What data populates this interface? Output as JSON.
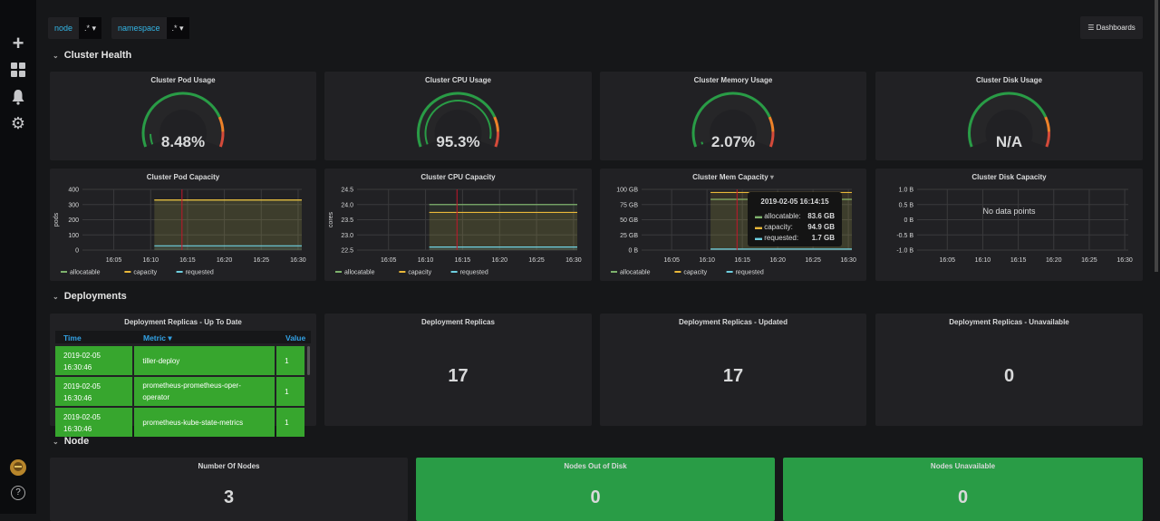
{
  "sidebar": {
    "items": [
      {
        "icon": "plus-icon",
        "glyph": "+"
      },
      {
        "icon": "dashboards-icon",
        "glyph": "▦"
      },
      {
        "icon": "bell-icon",
        "glyph": "🔔"
      },
      {
        "icon": "gear-icon",
        "glyph": "⚙"
      }
    ],
    "help_glyph": "?"
  },
  "variables": [
    {
      "label": "node",
      "value": ".*"
    },
    {
      "label": "namespace",
      "value": ".*"
    }
  ],
  "dashboards_button": "Dashboards",
  "rows": {
    "cluster_health": "Cluster Health",
    "deployments": "Deployments",
    "node": "Node"
  },
  "gauges": [
    {
      "title": "Cluster Pod Usage",
      "value": "8.48%",
      "fraction": 0.0848
    },
    {
      "title": "Cluster CPU Usage",
      "value": "95.3%",
      "fraction": 0.953
    },
    {
      "title": "Cluster Memory Usage",
      "value": "2.07%",
      "fraction": 0.0207
    },
    {
      "title": "Cluster Disk Usage",
      "value": "N/A",
      "fraction": null
    }
  ],
  "colors": {
    "ok": "#299c46",
    "warn": "#ed8128",
    "crit": "#d44a3a",
    "allocatable": "#7eb26d",
    "capacity": "#eab839",
    "requested": "#6ed0e0",
    "annotation": "#c4162a"
  },
  "chart_data": [
    {
      "type": "line",
      "title": "Cluster Pod Capacity",
      "ylabel": "pods",
      "ylim": [
        0,
        400
      ],
      "yticks": [
        "400",
        "300",
        "200",
        "100",
        "0"
      ],
      "ytick_values": [
        400,
        300,
        200,
        100,
        0
      ],
      "xticks": [
        "16:05",
        "16:10",
        "16:15",
        "16:20",
        "16:25",
        "16:30"
      ],
      "xrange": [
        "16:00:45",
        "16:30:30"
      ],
      "annotation_time": "16:14:15",
      "grid": true,
      "legend": "bottom",
      "series": [
        {
          "name": "allocatable",
          "start": "16:10:30",
          "end": "16:30:30",
          "value": 330
        },
        {
          "name": "capacity",
          "start": "16:10:30",
          "end": "16:30:30",
          "value": 330
        },
        {
          "name": "requested",
          "start": "16:10:30",
          "end": "16:30:30",
          "value": 28
        }
      ]
    },
    {
      "type": "line",
      "title": "Cluster CPU Capacity",
      "ylabel": "cores",
      "ylim": [
        22.5,
        24.5
      ],
      "yticks": [
        "24.5",
        "24.0",
        "23.5",
        "23.0",
        "22.5"
      ],
      "ytick_values": [
        24.5,
        24.0,
        23.5,
        23.0,
        22.5
      ],
      "xticks": [
        "16:05",
        "16:10",
        "16:15",
        "16:20",
        "16:25",
        "16:30"
      ],
      "xrange": [
        "16:00:45",
        "16:30:30"
      ],
      "annotation_time": "16:14:15",
      "grid": true,
      "legend": "bottom",
      "series": [
        {
          "name": "allocatable",
          "start": "16:10:30",
          "end": "16:30:30",
          "value": 24.0
        },
        {
          "name": "capacity",
          "start": "16:10:30",
          "end": "16:30:30",
          "value": 23.74
        },
        {
          "name": "requested",
          "start": "16:10:30",
          "end": "16:30:30",
          "value": 22.6
        }
      ]
    },
    {
      "type": "line",
      "title": "Cluster Mem Capacity",
      "ylabel": "",
      "ylim": [
        0,
        100
      ],
      "yticks": [
        "100 GB",
        "75 GB",
        "50 GB",
        "25 GB",
        "0 B"
      ],
      "ytick_values": [
        100,
        75,
        50,
        25,
        0
      ],
      "xticks": [
        "16:05",
        "16:10",
        "16:15",
        "16:20",
        "16:25",
        "16:30"
      ],
      "xrange": [
        "16:00:45",
        "16:30:30"
      ],
      "annotation_time": "16:14:15",
      "grid": true,
      "legend": "bottom",
      "series": [
        {
          "name": "allocatable",
          "start": "16:10:30",
          "end": "16:30:30",
          "value": 83.6
        },
        {
          "name": "capacity",
          "start": "16:10:30",
          "end": "16:30:30",
          "value": 94.9
        },
        {
          "name": "requested",
          "start": "16:10:30",
          "end": "16:30:30",
          "value": 1.7
        }
      ],
      "tooltip": {
        "time": "2019-02-05 16:14:15",
        "rows": [
          {
            "name": "allocatable:",
            "value": "83.6 GB"
          },
          {
            "name": "capacity:",
            "value": "94.9 GB"
          },
          {
            "name": "requested:",
            "value": "1.7 GB"
          }
        ]
      }
    },
    {
      "type": "line",
      "title": "Cluster Disk Capacity",
      "ylabel": "",
      "ylim": [
        -1,
        1
      ],
      "yticks": [
        "1.0 B",
        "0.5 B",
        "0 B",
        "-0.5 B",
        "-1.0 B"
      ],
      "ytick_values": [
        1,
        0.5,
        0,
        -0.5,
        -1
      ],
      "xticks": [
        "16:05",
        "16:10",
        "16:15",
        "16:20",
        "16:25",
        "16:30"
      ],
      "xrange": [
        "16:00:45",
        "16:30:30"
      ],
      "grid": true,
      "legend": "none",
      "series": [],
      "no_data": "No data points"
    }
  ],
  "deploy_table": {
    "title": "Deployment Replicas - Up To Date",
    "columns": [
      "Time",
      "Metric",
      "Value"
    ],
    "sort_glyph": "▾",
    "rows": [
      {
        "time": "2019-02-05 16:30:46",
        "metric": "tiller-deploy",
        "value": "1"
      },
      {
        "time": "2019-02-05 16:30:46",
        "metric": "prometheus-prometheus-oper-operator",
        "value": "1"
      },
      {
        "time": "2019-02-05 16:30:46",
        "metric": "prometheus-kube-state-metrics",
        "value": "1"
      }
    ]
  },
  "stats": [
    {
      "title": "Deployment Replicas",
      "value": "17"
    },
    {
      "title": "Deployment Replicas - Updated",
      "value": "17"
    },
    {
      "title": "Deployment Replicas - Unavailable",
      "value": "0"
    }
  ],
  "node_stats": [
    {
      "title": "Number Of Nodes",
      "value": "3",
      "bg": "#212124"
    },
    {
      "title": "Nodes Out of Disk",
      "value": "0",
      "bg": "#299c46"
    },
    {
      "title": "Nodes Unavailable",
      "value": "0",
      "bg": "#299c46"
    }
  ]
}
